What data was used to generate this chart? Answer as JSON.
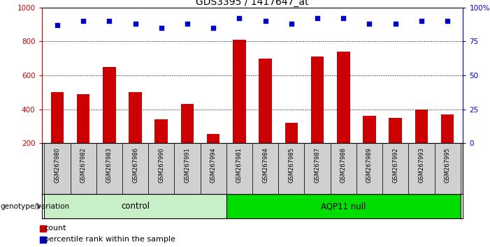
{
  "title": "GDS3395 / 1417647_at",
  "samples": [
    "GSM267980",
    "GSM267982",
    "GSM267983",
    "GSM267986",
    "GSM267990",
    "GSM267991",
    "GSM267994",
    "GSM267981",
    "GSM267984",
    "GSM267985",
    "GSM267987",
    "GSM267988",
    "GSM267989",
    "GSM267992",
    "GSM267993",
    "GSM267995"
  ],
  "counts": [
    500,
    490,
    650,
    500,
    340,
    430,
    255,
    810,
    700,
    320,
    710,
    740,
    360,
    350,
    400,
    370
  ],
  "percentile_ranks": [
    87,
    90,
    90,
    88,
    85,
    88,
    85,
    92,
    90,
    88,
    92,
    92,
    88,
    88,
    90,
    90
  ],
  "control_color": "#c8f0c8",
  "aqp11_color": "#00dd00",
  "bar_color": "#cc0000",
  "dot_color": "#0000cc",
  "ylim_left": [
    200,
    1000
  ],
  "ylim_right": [
    0,
    100
  ],
  "yticks_left": [
    200,
    400,
    600,
    800,
    1000
  ],
  "yticks_right": [
    0,
    25,
    50,
    75,
    100
  ],
  "grid_values": [
    400,
    600,
    800
  ],
  "background_color": "#ffffff",
  "tick_area_color": "#d0d0d0",
  "n_control": 7,
  "n_total": 16
}
